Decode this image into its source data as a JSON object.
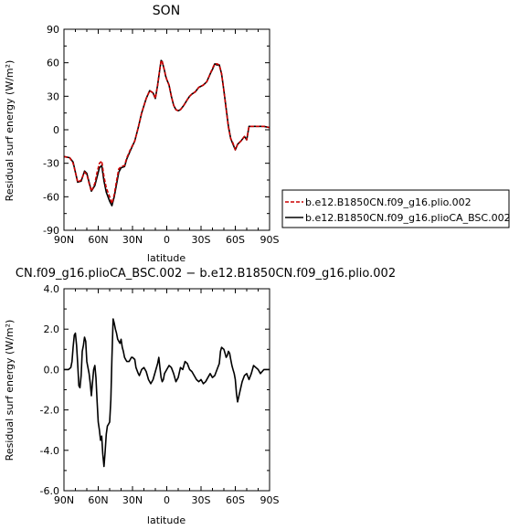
{
  "chart_data": [
    {
      "type": "line",
      "title": "SON",
      "xlabel": "latitude",
      "ylabel": "Residual surf energy (W/m²)",
      "xlim": [
        90,
        -90
      ],
      "ylim": [
        -90,
        90
      ],
      "x_ticks": [
        "90N",
        "60N",
        "30N",
        "0",
        "30S",
        "60S",
        "90S"
      ],
      "x_tick_values": [
        90,
        60,
        30,
        0,
        -30,
        -60,
        -90
      ],
      "y_ticks": [
        "-90",
        "-60",
        "-30",
        "0",
        "30",
        "60",
        "90"
      ],
      "y_tick_values": [
        -90,
        -60,
        -30,
        0,
        30,
        60,
        90
      ],
      "legend": {
        "position": "right",
        "entries": [
          {
            "label": "b.e12.B1850CN.f09_g16.plio.002",
            "series": 0
          },
          {
            "label": "b.e12.B1850CN.f09_g16.plioCA_BSC.002",
            "series": 1
          }
        ]
      },
      "series": [
        {
          "name": "b.e12.B1850CN.f09_g16.plio.002",
          "color": "#cc0000",
          "dash": "dashed",
          "x": [
            90,
            85,
            82,
            80,
            78,
            75,
            72,
            70,
            68,
            66,
            63,
            61,
            59,
            57,
            55,
            53,
            50,
            48,
            46,
            44,
            42,
            40,
            37,
            35,
            32,
            28,
            25,
            22,
            18,
            15,
            12,
            10,
            8,
            6,
            5,
            4,
            2,
            1,
            0,
            -2,
            -4,
            -6,
            -8,
            -10,
            -12,
            -15,
            -18,
            -20,
            -22,
            -25,
            -28,
            -32,
            -35,
            -38,
            -40,
            -42,
            -44,
            -46,
            -48,
            -50,
            -52,
            -54,
            -56,
            -58,
            -60,
            -62,
            -65,
            -68,
            -70,
            -72,
            -75,
            -78,
            -80,
            -85,
            -90
          ],
          "y": [
            -24,
            -25,
            -30,
            -38,
            -47,
            -45,
            -38,
            -40,
            -48,
            -55,
            -48,
            -38,
            -30,
            -28,
            -42,
            -52,
            -60,
            -66,
            -58,
            -46,
            -35,
            -33,
            -32,
            -25,
            -18,
            -10,
            2,
            15,
            28,
            35,
            33,
            28,
            40,
            55,
            62,
            61,
            53,
            48,
            45,
            40,
            30,
            22,
            18,
            17,
            18,
            22,
            27,
            30,
            32,
            34,
            38,
            40,
            43,
            50,
            55,
            59,
            59,
            58,
            50,
            35,
            18,
            2,
            -8,
            -12,
            -18,
            -13,
            -10,
            -6,
            -9,
            3,
            3,
            3,
            3,
            3,
            2
          ]
        },
        {
          "name": "b.e12.B1850CN.f09_g16.plioCA_BSC.002",
          "color": "#000000",
          "dash": "solid",
          "x": [
            90,
            85,
            82,
            80,
            78,
            75,
            72,
            70,
            68,
            66,
            63,
            61,
            59,
            57,
            55,
            53,
            50,
            48,
            46,
            44,
            42,
            40,
            37,
            35,
            32,
            28,
            25,
            22,
            18,
            15,
            12,
            10,
            8,
            6,
            5,
            4,
            2,
            1,
            0,
            -2,
            -4,
            -6,
            -8,
            -10,
            -12,
            -15,
            -18,
            -20,
            -22,
            -25,
            -28,
            -32,
            -35,
            -38,
            -40,
            -42,
            -44,
            -46,
            -48,
            -50,
            -52,
            -54,
            -56,
            -58,
            -60,
            -62,
            -65,
            -68,
            -70,
            -72,
            -75,
            -78,
            -80,
            -85,
            -90
          ],
          "y": [
            -24,
            -25,
            -29,
            -38,
            -47,
            -46,
            -37,
            -39,
            -47,
            -55,
            -50,
            -42,
            -34,
            -32,
            -46,
            -56,
            -64,
            -68,
            -60,
            -49,
            -38,
            -34,
            -33,
            -26,
            -19,
            -10,
            2,
            15,
            28,
            35,
            33,
            28,
            40,
            55,
            62,
            61,
            53,
            48,
            45,
            40,
            30,
            22,
            18,
            17,
            18,
            22,
            27,
            30,
            32,
            34,
            38,
            40,
            43,
            50,
            54,
            59,
            58,
            58,
            50,
            35,
            19,
            3,
            -8,
            -13,
            -18,
            -13,
            -10,
            -6,
            -9,
            3,
            3,
            3,
            3,
            3,
            2
          ]
        }
      ]
    },
    {
      "type": "line",
      "title": "CN.f09_g16.plioCA_BSC.002 − b.e12.B1850CN.f09_g16.plio.002",
      "xlabel": "latitude",
      "ylabel": "Residual surf energy (W/m²)",
      "xlim": [
        90,
        -90
      ],
      "ylim": [
        -6,
        4
      ],
      "x_ticks": [
        "90N",
        "60N",
        "30N",
        "0",
        "30S",
        "60S",
        "90S"
      ],
      "x_tick_values": [
        90,
        60,
        30,
        0,
        -30,
        -60,
        -90
      ],
      "y_ticks": [
        "-6.0",
        "-4.0",
        "-2.0",
        "0.0",
        "2.0",
        "4.0"
      ],
      "y_tick_values": [
        -6,
        -4,
        -2,
        0,
        2,
        4
      ],
      "series": [
        {
          "color": "#000000",
          "dash": "solid",
          "x": [
            90,
            86,
            84,
            83,
            82,
            81,
            80,
            79,
            78,
            77,
            76,
            75,
            74,
            73,
            72,
            71,
            70,
            68,
            67,
            66,
            65,
            64,
            63,
            62,
            61,
            60,
            59,
            58,
            57,
            56,
            55,
            54,
            53,
            52,
            51,
            50,
            49,
            48,
            47,
            46,
            45,
            44,
            43,
            42,
            41,
            40,
            39,
            38,
            37,
            36,
            35,
            33,
            31,
            30,
            28,
            27,
            25,
            24,
            22,
            20,
            18,
            16,
            14,
            12,
            10,
            8,
            7,
            6,
            5,
            4,
            3,
            2,
            0,
            -2,
            -4,
            -6,
            -8,
            -10,
            -12,
            -14,
            -16,
            -18,
            -20,
            -22,
            -24,
            -26,
            -28,
            -30,
            -32,
            -34,
            -36,
            -38,
            -40,
            -42,
            -44,
            -46,
            -47,
            -48,
            -50,
            -51,
            -52,
            -53,
            -54,
            -55,
            -56,
            -57,
            -58,
            -59,
            -60,
            -61,
            -62,
            -64,
            -66,
            -68,
            -70,
            -72,
            -74,
            -76,
            -78,
            -80,
            -82,
            -85,
            -88,
            -90
          ],
          "y": [
            0.0,
            0.0,
            0.1,
            0.4,
            1.1,
            1.7,
            1.8,
            1.2,
            0.3,
            -0.8,
            -0.9,
            -0.3,
            0.9,
            1.2,
            1.6,
            1.4,
            0.4,
            -0.2,
            -0.7,
            -1.3,
            -0.6,
            0.0,
            0.2,
            -0.4,
            -1.6,
            -2.6,
            -3.0,
            -3.5,
            -3.3,
            -4.2,
            -4.8,
            -4.1,
            -3.2,
            -2.8,
            -2.7,
            -2.6,
            -1.5,
            0.6,
            2.5,
            2.3,
            2.0,
            1.8,
            1.5,
            1.4,
            1.3,
            1.5,
            1.1,
            0.9,
            0.6,
            0.5,
            0.4,
            0.4,
            0.6,
            0.6,
            0.5,
            0.1,
            -0.2,
            -0.3,
            0.0,
            0.1,
            -0.1,
            -0.5,
            -0.7,
            -0.5,
            -0.1,
            0.3,
            0.6,
            0.1,
            -0.4,
            -0.6,
            -0.5,
            -0.2,
            0.0,
            0.2,
            0.1,
            -0.2,
            -0.6,
            -0.4,
            0.1,
            0.0,
            0.4,
            0.3,
            0.0,
            -0.1,
            -0.3,
            -0.5,
            -0.6,
            -0.5,
            -0.7,
            -0.6,
            -0.4,
            -0.2,
            -0.4,
            -0.3,
            0.0,
            0.3,
            0.9,
            1.1,
            1.0,
            0.8,
            0.6,
            0.7,
            0.9,
            0.8,
            0.5,
            0.2,
            0.0,
            -0.2,
            -0.5,
            -1.2,
            -1.6,
            -1.1,
            -0.6,
            -0.3,
            -0.2,
            -0.5,
            -0.2,
            0.2,
            0.1,
            0.0,
            -0.2,
            0.0,
            0.0,
            0.0
          ]
        }
      ]
    }
  ]
}
